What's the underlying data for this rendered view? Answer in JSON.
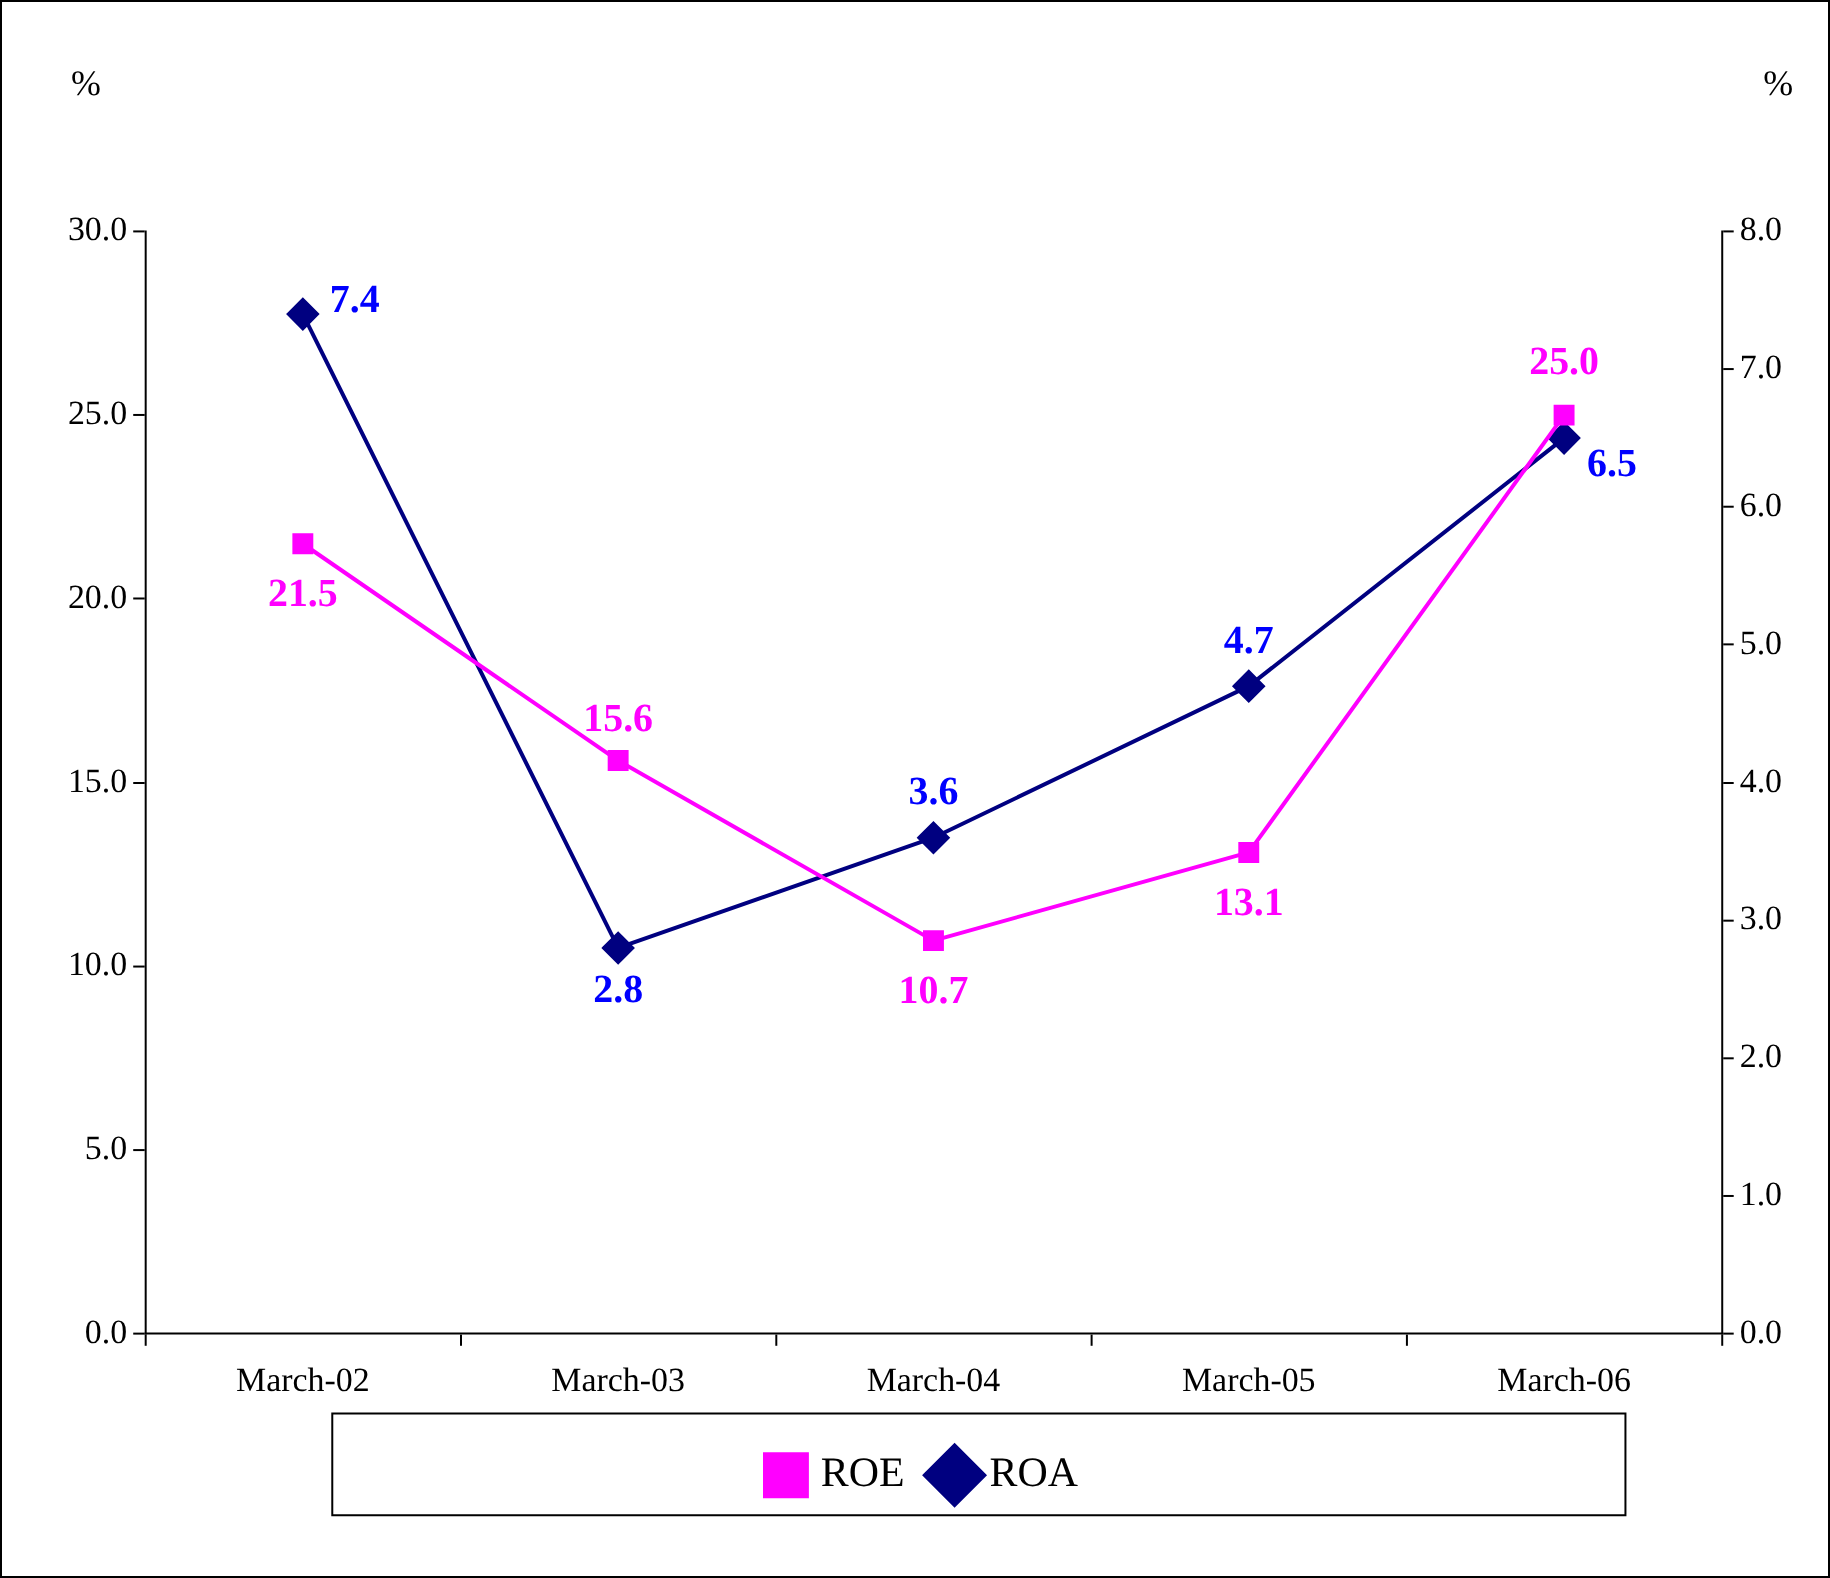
{
  "chart_data": {
    "type": "line",
    "ylabel": "%",
    "y2label": "%",
    "categories": [
      "March-02",
      "March-03",
      "March-04",
      "March-05",
      "March-06"
    ],
    "series": [
      {
        "name": "ROE",
        "color": "#ff00ff",
        "marker": "square",
        "values": [
          21.5,
          15.6,
          10.7,
          13.1,
          25.0
        ],
        "value_labels": [
          "21.5",
          "15.6",
          "10.7",
          "13.1",
          "25.0"
        ]
      },
      {
        "name": "ROA",
        "color": "#000080",
        "marker": "diamond",
        "axis": "y2",
        "values": [
          7.4,
          2.8,
          3.6,
          4.7,
          6.5
        ],
        "value_labels": [
          "7.4",
          "2.8",
          "3.6",
          "4.7",
          "6.5"
        ]
      }
    ],
    "ylim": [
      0,
      30
    ],
    "yticks": [
      {
        "value": 0,
        "label": "0.0"
      },
      {
        "value": 5,
        "label": "5.0"
      },
      {
        "value": 10,
        "label": "10.0"
      },
      {
        "value": 15,
        "label": "15.0"
      },
      {
        "value": 20,
        "label": "20.0"
      },
      {
        "value": 25,
        "label": "25.0"
      },
      {
        "value": 30,
        "label": "30.0"
      }
    ],
    "y2lim": [
      0,
      8
    ],
    "y2ticks": [
      {
        "value": 0,
        "label": "0.0"
      },
      {
        "value": 1,
        "label": "1.0"
      },
      {
        "value": 2,
        "label": "2.0"
      },
      {
        "value": 3,
        "label": "3.0"
      },
      {
        "value": 4,
        "label": "4.0"
      },
      {
        "value": 5,
        "label": "5.0"
      },
      {
        "value": 6,
        "label": "6.0"
      },
      {
        "value": 7,
        "label": "7.0"
      },
      {
        "value": 8,
        "label": "8.0"
      }
    ],
    "grid": false,
    "legend": "bottom"
  }
}
